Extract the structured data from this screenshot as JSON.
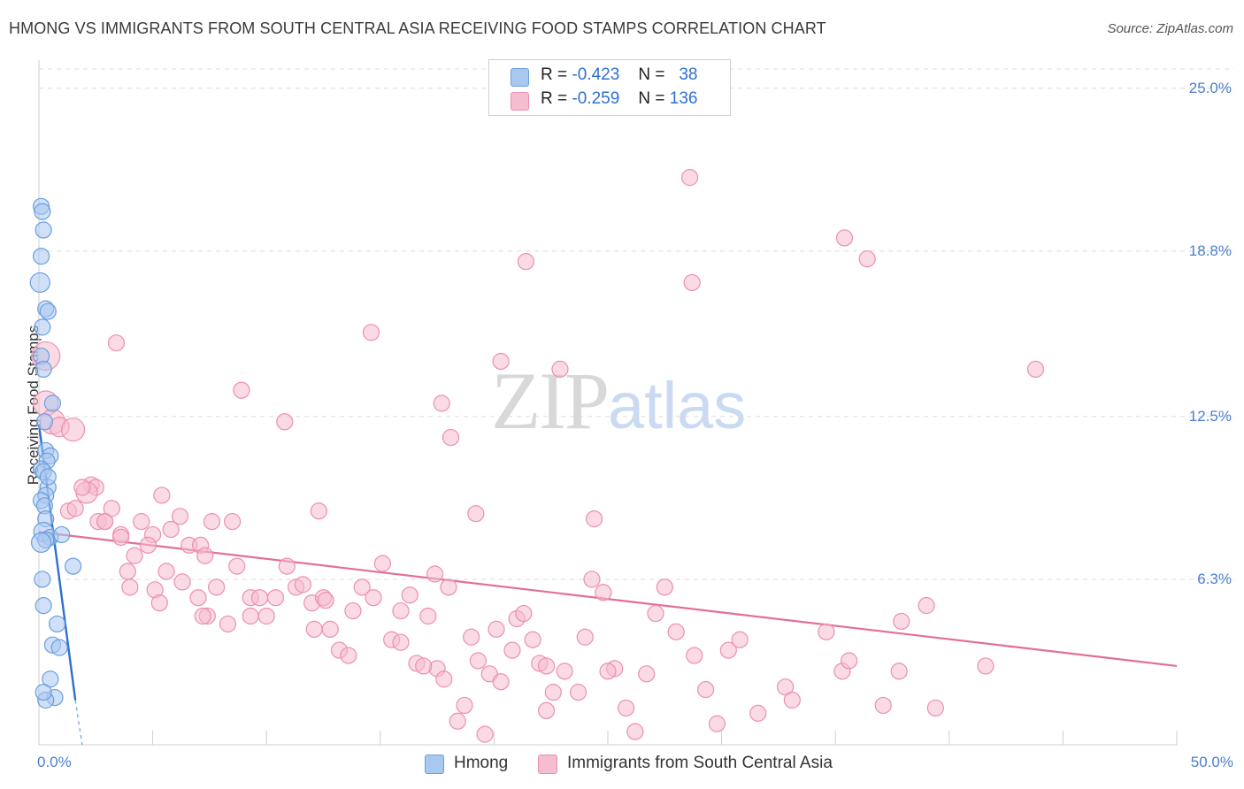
{
  "title": "HMONG VS IMMIGRANTS FROM SOUTH CENTRAL ASIA RECEIVING FOOD STAMPS CORRELATION CHART",
  "source": "Source: ZipAtlas.com",
  "watermark": {
    "zip": "ZIP",
    "atlas": "atlas"
  },
  "colors": {
    "blue_fill": "#a9c8f0",
    "blue_edge": "#6a9ee0",
    "blue_line": "#2e6fd0",
    "pink_fill": "#f6bcd0",
    "pink_edge": "#ec8fb0",
    "pink_line": "#e0709a",
    "tick_label": "#4a7fd1",
    "grid": "#dcdcdc"
  },
  "legend": {
    "r_label": "R =",
    "n_label": "N =",
    "rows": [
      {
        "r": "-0.423",
        "n": "38",
        "color": "#a9c8f0",
        "edge": "#6a9ee0"
      },
      {
        "r": "-0.259",
        "n": "136",
        "color": "#f6bcd0",
        "edge": "#ec8fb0"
      }
    ]
  },
  "bottom_legend": [
    {
      "label": "Hmong",
      "color": "#a9c8f0",
      "edge": "#6a9ee0"
    },
    {
      "label": "Immigrants from South Central Asia",
      "color": "#f6bcd0",
      "edge": "#ec8fb0"
    }
  ],
  "chart_data": {
    "type": "scatter",
    "title": "HMONG VS IMMIGRANTS FROM SOUTH CENTRAL ASIA RECEIVING FOOD STAMPS CORRELATION CHART",
    "xlabel": "",
    "ylabel": "Receiving Food Stamps",
    "xlim": [
      0,
      50
    ],
    "ylim": [
      0,
      26
    ],
    "x_tick_labels": [
      "0.0%",
      "50.0%"
    ],
    "y_ticks": [
      6.3,
      12.5,
      18.8,
      25.0
    ],
    "y_tick_labels": [
      "6.3%",
      "12.5%",
      "18.8%",
      "25.0%"
    ],
    "grid": true,
    "legend_position": "top-center",
    "series": [
      {
        "name": "Hmong",
        "color": "#a9c8f0",
        "trend": {
          "x": [
            0.0,
            1.6
          ],
          "y": [
            12.2,
            1.7
          ],
          "dash_to": [
            1.9,
            0.0
          ]
        },
        "points": [
          [
            0.1,
            20.5,
            9
          ],
          [
            0.15,
            20.3,
            9
          ],
          [
            0.2,
            19.6,
            9
          ],
          [
            0.1,
            18.6,
            9
          ],
          [
            0.05,
            17.6,
            11
          ],
          [
            0.3,
            16.6,
            9
          ],
          [
            0.4,
            16.5,
            9
          ],
          [
            0.15,
            15.9,
            9
          ],
          [
            0.1,
            14.8,
            9
          ],
          [
            0.2,
            14.3,
            9
          ],
          [
            0.6,
            13.0,
            9
          ],
          [
            0.3,
            11.2,
            9
          ],
          [
            0.5,
            11.0,
            9
          ],
          [
            0.35,
            10.8,
            9
          ],
          [
            0.1,
            10.5,
            9
          ],
          [
            0.2,
            10.4,
            9
          ],
          [
            0.4,
            9.8,
            9
          ],
          [
            0.3,
            9.5,
            9
          ],
          [
            0.1,
            9.3,
            9
          ],
          [
            0.25,
            9.1,
            9
          ],
          [
            0.3,
            8.6,
            9
          ],
          [
            0.2,
            8.1,
            11
          ],
          [
            0.5,
            7.9,
            9
          ],
          [
            0.3,
            7.8,
            9
          ],
          [
            0.1,
            7.7,
            11
          ],
          [
            1.0,
            8.0,
            9
          ],
          [
            1.5,
            6.8,
            9
          ],
          [
            0.15,
            6.3,
            9
          ],
          [
            0.2,
            5.3,
            9
          ],
          [
            0.8,
            4.6,
            9
          ],
          [
            0.6,
            3.8,
            9
          ],
          [
            0.9,
            3.7,
            9
          ],
          [
            0.5,
            2.5,
            9
          ],
          [
            0.7,
            1.8,
            9
          ],
          [
            0.3,
            1.7,
            9
          ],
          [
            0.2,
            2.0,
            9
          ],
          [
            0.4,
            10.2,
            9
          ],
          [
            0.25,
            12.3,
            9
          ]
        ]
      },
      {
        "name": "Immigrants from South Central Asia",
        "color": "#f6bcd0",
        "trend": {
          "x": [
            0.0,
            50.0
          ],
          "y": [
            8.1,
            3.0
          ]
        },
        "points": [
          [
            0.3,
            14.8,
            16
          ],
          [
            0.3,
            13.0,
            14
          ],
          [
            0.6,
            12.3,
            14
          ],
          [
            0.9,
            12.1,
            11
          ],
          [
            1.5,
            12.0,
            13
          ],
          [
            2.3,
            9.9,
            9
          ],
          [
            2.5,
            9.8,
            9
          ],
          [
            2.1,
            9.6,
            12
          ],
          [
            1.3,
            8.9,
            9
          ],
          [
            1.6,
            9.0,
            9
          ],
          [
            2.6,
            8.5,
            9
          ],
          [
            2.9,
            8.5,
            9
          ],
          [
            3.2,
            9.0,
            9
          ],
          [
            3.4,
            15.3,
            9
          ],
          [
            5.4,
            9.5,
            9
          ],
          [
            6.2,
            8.7,
            9
          ],
          [
            7.6,
            8.5,
            9
          ],
          [
            8.5,
            8.5,
            9
          ],
          [
            8.9,
            13.5,
            9
          ],
          [
            10.8,
            12.3,
            9
          ],
          [
            12.3,
            8.9,
            9
          ],
          [
            14.6,
            15.7,
            9
          ],
          [
            17.7,
            13.0,
            9
          ],
          [
            18.1,
            11.7,
            9
          ],
          [
            19.2,
            8.8,
            9
          ],
          [
            20.3,
            14.6,
            9
          ],
          [
            21.4,
            18.4,
            9
          ],
          [
            22.9,
            14.3,
            9
          ],
          [
            24.4,
            8.6,
            9
          ],
          [
            28.6,
            21.6,
            9
          ],
          [
            28.7,
            17.6,
            9
          ],
          [
            35.4,
            19.3,
            9
          ],
          [
            36.4,
            18.5,
            9
          ],
          [
            43.8,
            14.3,
            9
          ],
          [
            3.6,
            8.0,
            9
          ],
          [
            4.5,
            8.5,
            9
          ],
          [
            5.0,
            8.0,
            9
          ],
          [
            5.8,
            8.2,
            9
          ],
          [
            4.8,
            7.6,
            9
          ],
          [
            4.2,
            7.2,
            9
          ],
          [
            3.9,
            6.6,
            9
          ],
          [
            4.0,
            6.0,
            9
          ],
          [
            5.1,
            5.9,
            9
          ],
          [
            5.3,
            5.4,
            9
          ],
          [
            5.6,
            6.6,
            9
          ],
          [
            6.3,
            6.2,
            9
          ],
          [
            6.6,
            7.6,
            9
          ],
          [
            7.1,
            7.6,
            9
          ],
          [
            7.3,
            7.2,
            9
          ],
          [
            7.0,
            5.6,
            9
          ],
          [
            7.4,
            4.9,
            9
          ],
          [
            7.8,
            6.0,
            9
          ],
          [
            8.3,
            4.6,
            9
          ],
          [
            8.7,
            6.8,
            9
          ],
          [
            9.3,
            5.6,
            9
          ],
          [
            9.7,
            5.6,
            9
          ],
          [
            10.0,
            4.9,
            9
          ],
          [
            10.4,
            5.6,
            9
          ],
          [
            10.9,
            6.8,
            9
          ],
          [
            11.3,
            6.0,
            9
          ],
          [
            11.6,
            6.1,
            9
          ],
          [
            12.0,
            5.4,
            9
          ],
          [
            12.1,
            4.4,
            9
          ],
          [
            12.5,
            5.6,
            9
          ],
          [
            12.8,
            4.4,
            9
          ],
          [
            13.2,
            3.6,
            9
          ],
          [
            13.8,
            5.1,
            9
          ],
          [
            14.2,
            6.0,
            9
          ],
          [
            14.7,
            5.6,
            9
          ],
          [
            15.1,
            6.9,
            9
          ],
          [
            15.5,
            4.0,
            9
          ],
          [
            15.9,
            5.1,
            9
          ],
          [
            16.3,
            5.7,
            9
          ],
          [
            16.6,
            3.1,
            9
          ],
          [
            17.1,
            4.9,
            9
          ],
          [
            17.4,
            6.5,
            9
          ],
          [
            17.5,
            2.9,
            9
          ],
          [
            17.8,
            2.5,
            9
          ],
          [
            18.0,
            6.0,
            9
          ],
          [
            18.4,
            0.9,
            9
          ],
          [
            18.7,
            1.5,
            9
          ],
          [
            19.0,
            4.1,
            9
          ],
          [
            19.3,
            3.2,
            9
          ],
          [
            19.6,
            0.4,
            9
          ],
          [
            19.8,
            2.7,
            9
          ],
          [
            20.1,
            4.4,
            9
          ],
          [
            20.3,
            2.4,
            9
          ],
          [
            20.8,
            3.6,
            9
          ],
          [
            21.0,
            4.8,
            9
          ],
          [
            21.3,
            5.0,
            9
          ],
          [
            21.7,
            4.0,
            9
          ],
          [
            22.0,
            3.1,
            9
          ],
          [
            22.3,
            1.3,
            9
          ],
          [
            22.6,
            2.0,
            9
          ],
          [
            23.1,
            2.8,
            9
          ],
          [
            23.7,
            2.0,
            9
          ],
          [
            24.0,
            4.1,
            9
          ],
          [
            24.3,
            6.3,
            9
          ],
          [
            24.8,
            5.8,
            9
          ],
          [
            25.3,
            2.9,
            9
          ],
          [
            25.8,
            1.4,
            9
          ],
          [
            26.2,
            0.5,
            9
          ],
          [
            26.7,
            2.7,
            9
          ],
          [
            27.1,
            5.0,
            9
          ],
          [
            28.0,
            4.3,
            9
          ],
          [
            28.8,
            3.4,
            9
          ],
          [
            29.3,
            2.1,
            9
          ],
          [
            29.8,
            0.8,
            9
          ],
          [
            30.3,
            3.6,
            9
          ],
          [
            30.8,
            4.0,
            9
          ],
          [
            31.6,
            1.2,
            9
          ],
          [
            32.8,
            2.2,
            9
          ],
          [
            33.1,
            1.7,
            9
          ],
          [
            34.6,
            4.3,
            9
          ],
          [
            35.3,
            2.8,
            9
          ],
          [
            35.6,
            3.2,
            9
          ],
          [
            37.1,
            1.5,
            9
          ],
          [
            37.8,
            2.8,
            9
          ],
          [
            37.9,
            4.7,
            9
          ],
          [
            39.0,
            5.3,
            9
          ],
          [
            39.4,
            1.4,
            9
          ],
          [
            41.6,
            3.0,
            9
          ],
          [
            1.9,
            9.8,
            9
          ],
          [
            2.9,
            8.5,
            9
          ],
          [
            3.6,
            7.9,
            9
          ],
          [
            7.2,
            4.9,
            9
          ],
          [
            9.3,
            4.9,
            9
          ],
          [
            12.6,
            5.5,
            9
          ],
          [
            13.6,
            3.4,
            9
          ],
          [
            15.9,
            3.9,
            9
          ],
          [
            16.9,
            3.0,
            9
          ],
          [
            22.3,
            3.0,
            9
          ],
          [
            25.0,
            2.8,
            9
          ],
          [
            27.5,
            6.0,
            9
          ]
        ]
      }
    ]
  }
}
